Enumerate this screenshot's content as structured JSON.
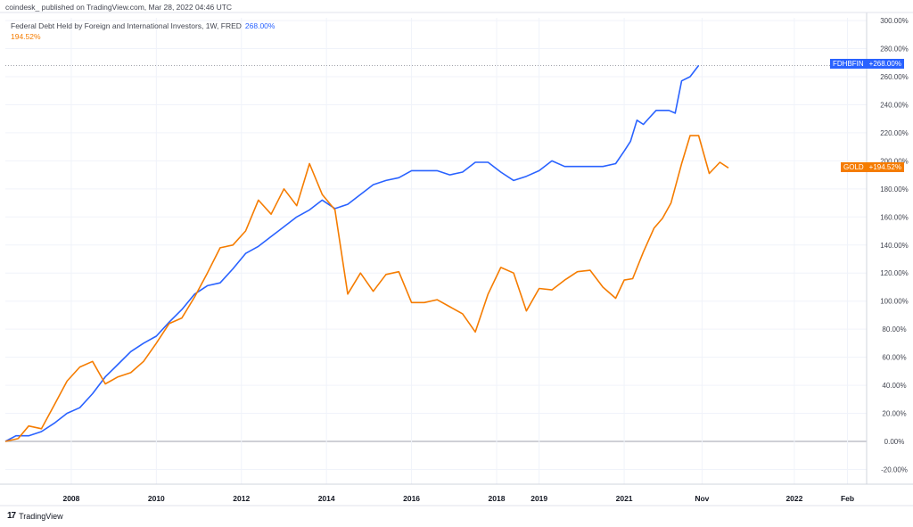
{
  "header": {
    "published": "coindesk_ published on TradingView.com, Mar 28, 2022 04:46 UTC"
  },
  "legend": {
    "title": "Federal Debt Held by Foreign and International Investors, 1W, FRED",
    "value1": "268.00%",
    "value2": "194.52%"
  },
  "tags": {
    "fdhbfin_label": "FDHBFIN",
    "fdhbfin_value": "+268.00%",
    "gold_label": "GOLD",
    "gold_value": "+194.52%"
  },
  "footer": {
    "logo": "17",
    "brand": "TradingView"
  },
  "colors": {
    "blue": "#2962ff",
    "orange": "#f57c00",
    "grid": "#f0f3fa",
    "zero": "#b2b5be"
  },
  "chart_data": {
    "type": "line",
    "y_unit": "%",
    "ylim": [
      -30,
      300
    ],
    "y_ticks": [
      -20,
      0,
      20,
      40,
      60,
      80,
      100,
      120,
      140,
      160,
      180,
      200,
      220,
      240,
      260,
      280,
      300
    ],
    "y_tick_labels": [
      "-20.00%",
      "0.00%",
      "20.00%",
      "40.00%",
      "60.00%",
      "80.00%",
      "100.00%",
      "120.00%",
      "140.00%",
      "160.00%",
      "180.00%",
      "200.00%",
      "220.00%",
      "240.00%",
      "260.00%",
      "280.00%",
      "300.00%"
    ],
    "x_ticks": [
      {
        "label": "2008",
        "x": 2008.0
      },
      {
        "label": "2010",
        "x": 2010.0
      },
      {
        "label": "2012",
        "x": 2012.0
      },
      {
        "label": "2014",
        "x": 2014.0
      },
      {
        "label": "2016",
        "x": 2016.0
      },
      {
        "label": "2018",
        "x": 2018.0
      },
      {
        "label": "2019",
        "x": 2019.0
      },
      {
        "label": "2021",
        "x": 2021.0
      },
      {
        "label": "Nov",
        "x": 2022.83
      },
      {
        "label": "2022",
        "x": 2025.0
      },
      {
        "label": "Feb",
        "x": 2026.25
      }
    ],
    "xlim": [
      2006.45,
      2026.7
    ],
    "reference_value": 268,
    "series": [
      {
        "name": "FDHBFIN",
        "color": "#2962ff",
        "points": [
          [
            2006.45,
            0
          ],
          [
            2006.7,
            4
          ],
          [
            2007.0,
            4
          ],
          [
            2007.3,
            7
          ],
          [
            2007.6,
            13
          ],
          [
            2007.9,
            20
          ],
          [
            2008.2,
            24
          ],
          [
            2008.5,
            34
          ],
          [
            2008.8,
            46
          ],
          [
            2009.1,
            55
          ],
          [
            2009.4,
            64
          ],
          [
            2009.7,
            70
          ],
          [
            2010.0,
            75
          ],
          [
            2010.3,
            85
          ],
          [
            2010.6,
            94
          ],
          [
            2010.9,
            105
          ],
          [
            2011.2,
            111
          ],
          [
            2011.5,
            113
          ],
          [
            2011.8,
            123
          ],
          [
            2012.1,
            134
          ],
          [
            2012.4,
            139
          ],
          [
            2012.7,
            146
          ],
          [
            2013.0,
            153
          ],
          [
            2013.3,
            160
          ],
          [
            2013.6,
            165
          ],
          [
            2013.9,
            172
          ],
          [
            2014.2,
            166
          ],
          [
            2014.5,
            169
          ],
          [
            2014.8,
            176
          ],
          [
            2015.1,
            183
          ],
          [
            2015.4,
            186
          ],
          [
            2015.7,
            188
          ],
          [
            2016.0,
            193
          ],
          [
            2016.3,
            193
          ],
          [
            2016.6,
            193
          ],
          [
            2016.9,
            190
          ],
          [
            2017.2,
            192
          ],
          [
            2017.5,
            199
          ],
          [
            2017.8,
            199
          ],
          [
            2018.1,
            192
          ],
          [
            2018.4,
            186
          ],
          [
            2018.7,
            189
          ],
          [
            2019.0,
            193
          ],
          [
            2019.3,
            200
          ],
          [
            2019.6,
            196
          ],
          [
            2019.9,
            196
          ],
          [
            2020.2,
            196
          ],
          [
            2020.5,
            196
          ],
          [
            2020.8,
            198
          ],
          [
            2021.0,
            207
          ],
          [
            2021.15,
            214
          ],
          [
            2021.3,
            229
          ],
          [
            2021.45,
            226
          ],
          [
            2021.6,
            231
          ],
          [
            2021.75,
            236
          ],
          [
            2021.9,
            236
          ],
          [
            2022.05,
            236
          ],
          [
            2022.2,
            234
          ],
          [
            2022.35,
            257
          ],
          [
            2022.55,
            260
          ],
          [
            2022.75,
            268
          ]
        ]
      },
      {
        "name": "GOLD",
        "color": "#f57c00",
        "points": [
          [
            2006.45,
            0
          ],
          [
            2006.75,
            2
          ],
          [
            2007.0,
            11
          ],
          [
            2007.3,
            9
          ],
          [
            2007.6,
            26
          ],
          [
            2007.9,
            43
          ],
          [
            2008.2,
            53
          ],
          [
            2008.5,
            57
          ],
          [
            2008.8,
            41
          ],
          [
            2009.1,
            46
          ],
          [
            2009.4,
            49
          ],
          [
            2009.7,
            57
          ],
          [
            2010.0,
            70
          ],
          [
            2010.3,
            84
          ],
          [
            2010.6,
            88
          ],
          [
            2010.9,
            103
          ],
          [
            2011.2,
            120
          ],
          [
            2011.5,
            138
          ],
          [
            2011.8,
            140
          ],
          [
            2012.1,
            150
          ],
          [
            2012.4,
            172
          ],
          [
            2012.7,
            162
          ],
          [
            2013.0,
            180
          ],
          [
            2013.3,
            168
          ],
          [
            2013.6,
            198
          ],
          [
            2013.9,
            176
          ],
          [
            2014.2,
            165
          ],
          [
            2014.5,
            105
          ],
          [
            2014.8,
            120
          ],
          [
            2015.1,
            107
          ],
          [
            2015.4,
            119
          ],
          [
            2015.7,
            121
          ],
          [
            2016.0,
            99
          ],
          [
            2016.3,
            99
          ],
          [
            2016.6,
            101
          ],
          [
            2016.9,
            96
          ],
          [
            2017.2,
            91
          ],
          [
            2017.5,
            78
          ],
          [
            2017.8,
            105
          ],
          [
            2018.1,
            124
          ],
          [
            2018.4,
            120
          ],
          [
            2018.7,
            93
          ],
          [
            2019.0,
            109
          ],
          [
            2019.3,
            108
          ],
          [
            2019.6,
            115
          ],
          [
            2019.9,
            121
          ],
          [
            2020.2,
            122
          ],
          [
            2020.5,
            110
          ],
          [
            2020.8,
            102
          ],
          [
            2021.0,
            115
          ],
          [
            2021.2,
            116
          ],
          [
            2021.45,
            135
          ],
          [
            2021.7,
            152
          ],
          [
            2021.9,
            159
          ],
          [
            2022.1,
            170
          ],
          [
            2022.35,
            198
          ],
          [
            2022.55,
            218
          ],
          [
            2022.75,
            218
          ],
          [
            2023.0,
            191
          ],
          [
            2023.25,
            199
          ],
          [
            2023.45,
            195
          ]
        ]
      }
    ]
  }
}
